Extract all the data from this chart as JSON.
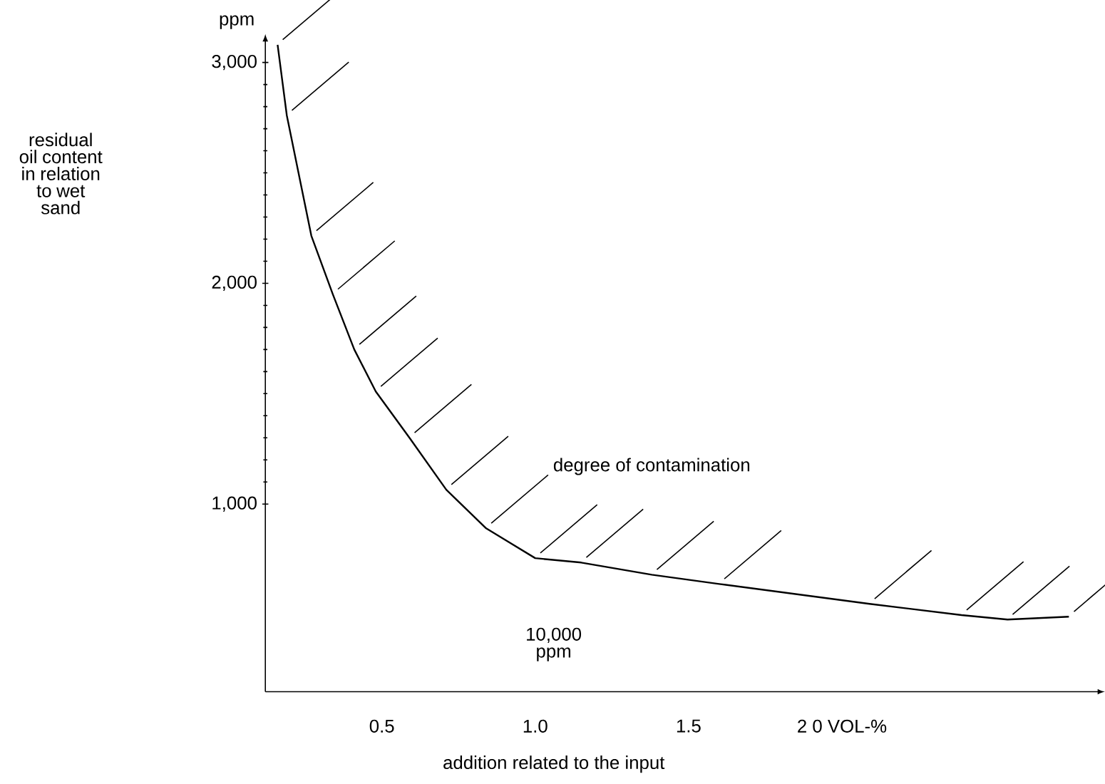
{
  "chart_data": {
    "type": "line",
    "xlabel": "addition related to the input",
    "annotations": [
      "ppm",
      "degree of contamination",
      "10,000 ppm",
      "residual oil content in relation to wet sand"
    ],
    "xlim": [
      0.12,
      2.83
    ],
    "ylim": [
      150,
      3090
    ],
    "xticks": [
      0.5,
      {
        "value": 1.0,
        "label": "1.0"
      },
      1.5,
      {
        "value": 2.0,
        "label": "2 0 VOL-%"
      }
    ],
    "yticks": [
      {
        "value": 1000,
        "label": "1,000"
      },
      {
        "value": 2000,
        "label": "2,000"
      },
      {
        "value": 3000,
        "label": "3,000"
      }
    ],
    "series": [
      {
        "color": "#000000",
        "x": [
          0.16,
          0.19,
          0.27,
          0.34,
          0.41,
          0.48,
          0.59,
          0.71,
          0.84,
          1.0,
          1.15,
          1.38,
          1.6,
          2.09,
          2.39,
          2.54,
          2.74
        ],
        "values": [
          3080,
          2760,
          2215,
          1950,
          1700,
          1510,
          1300,
          1065,
          890,
          755,
          735,
          680,
          638,
          548,
          497,
          477,
          490
        ]
      }
    ]
  }
}
